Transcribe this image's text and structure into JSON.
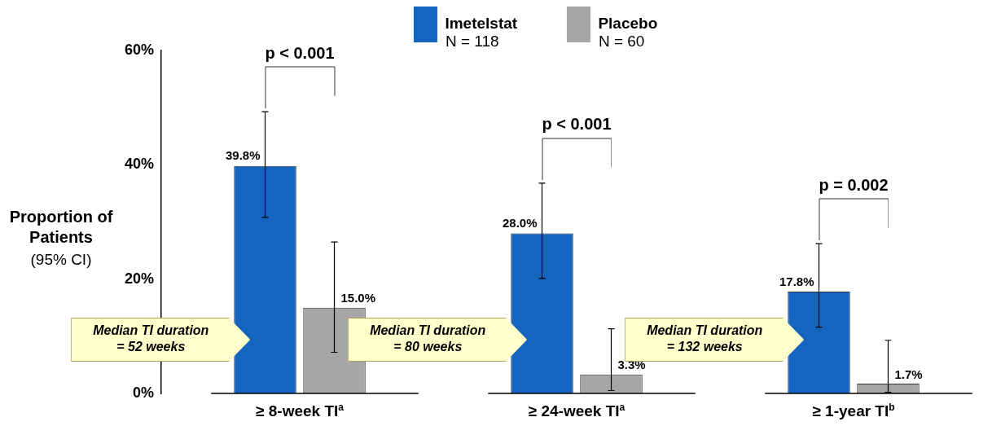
{
  "chart_data": {
    "type": "bar",
    "ylabel": "Proportion of Patients",
    "categories": [
      "≥ 8-week TI$^{a}$",
      "≥ 24-week TI$^{a}$",
      "≥ 1-year TI$^{b}$"
    ],
    "series": [
      {
        "name": "Imetelstat",
        "color": "#1565c0",
        "values": [
          39.8,
          28.0,
          17.8
        ],
        "errors": [
          [
            30.8,
            49.3
          ],
          [
            20.1,
            36.8
          ],
          [
            11.6,
            26.2
          ]
        ],
        "value_labels": [
          "39.8%",
          "28.0%",
          "17.8%"
        ]
      },
      {
        "name": "Placebo",
        "color": "#a6a6a6",
        "values": [
          15.0,
          3.3,
          1.7
        ],
        "errors": [
          [
            7.2,
            26.5
          ],
          [
            0.5,
            11.3
          ],
          [
            0.2,
            9.3
          ]
        ],
        "value_labels": [
          "15.0%",
          "3.3%",
          "1.7%"
        ]
      }
    ],
    "ylim": [
      0,
      60
    ],
    "yticks": [
      {
        "value": 0,
        "label": "0%"
      },
      {
        "value": 20,
        "label": "20%"
      },
      {
        "value": 40,
        "label": "40%"
      },
      {
        "value": 60,
        "label": "60%"
      }
    ],
    "legend": "top",
    "annotations": [
      "p < 0.001",
      "p < 0.001",
      "p = 0.002",
      "Median TI duration\n= 52 weeks",
      "Median TI duration\n= 80 weeks",
      "Median TI duration\n= 132 weeks",
      "N = 118",
      "N = 60",
      "(95% CI)"
    ]
  }
}
